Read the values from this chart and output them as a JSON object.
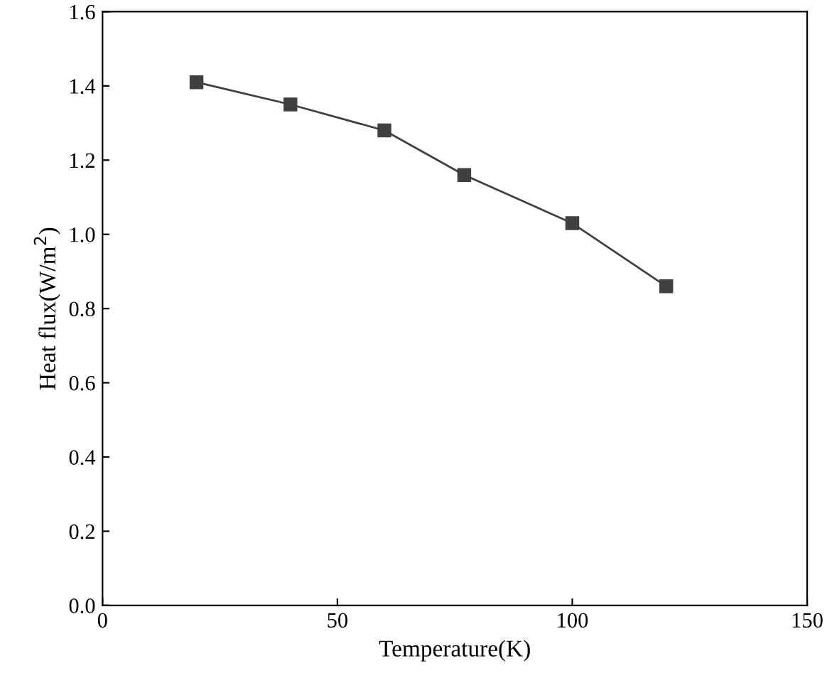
{
  "chart_data": {
    "type": "line",
    "xlabel": "Temperature(K)",
    "ylabel": "Heat flux(W/m$^{2}$)",
    "x": [
      20,
      40,
      60,
      77,
      100,
      120
    ],
    "series": [
      {
        "color": "#404040",
        "values": [
          1.41,
          1.35,
          1.28,
          1.16,
          1.03,
          0.86
        ]
      }
    ],
    "xlim": [
      0,
      150
    ],
    "xticks": [
      0,
      50,
      100,
      150
    ],
    "ylim": [
      0,
      1.6
    ],
    "yticks": [
      {
        "value": 0,
        "label": "0.0"
      },
      {
        "value": 0.2,
        "label": "0.2"
      },
      {
        "value": 0.4,
        "label": "0.4"
      },
      {
        "value": 0.6,
        "label": "0.6"
      },
      {
        "value": 0.8,
        "label": "0.8"
      },
      {
        "value": 1.0,
        "label": "1.0"
      },
      {
        "value": 1.2,
        "label": "1.2"
      },
      {
        "value": 1.4,
        "label": "1.4"
      },
      {
        "value": 1.6,
        "label": "1.6"
      }
    ],
    "marker": "square",
    "line_style": "solid",
    "grid": false,
    "legend": false
  }
}
